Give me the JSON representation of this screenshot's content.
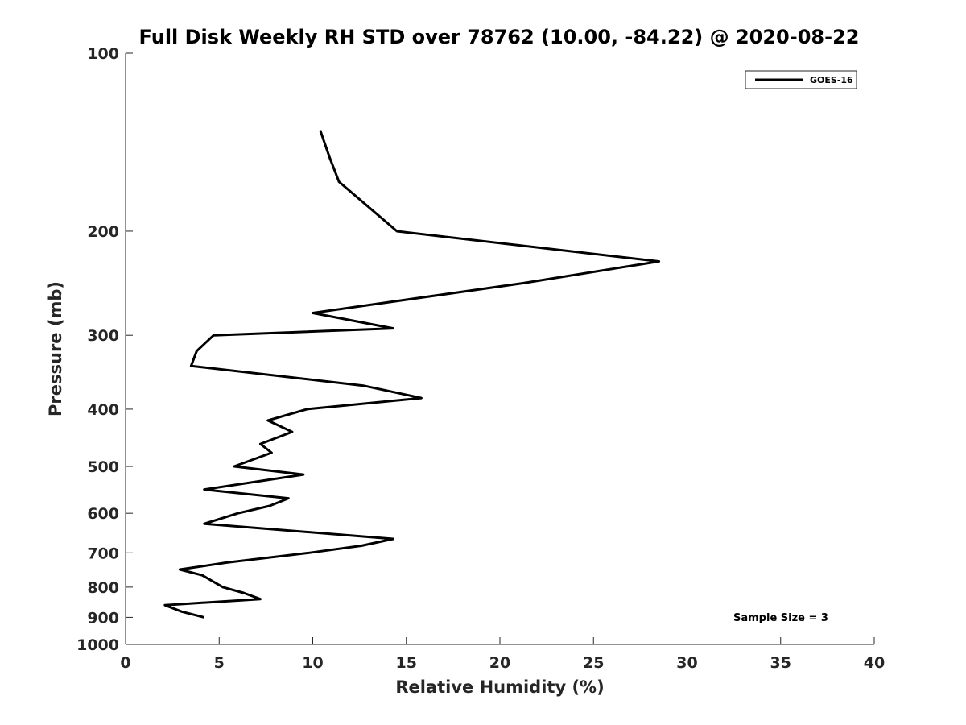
{
  "chart_data": {
    "type": "line",
    "title": "Full Disk Weekly RH STD over 78762 (10.00, -84.22) @ 2020-08-22",
    "xlabel": "Relative Humidity (%)",
    "ylabel": "Pressure (mb)",
    "xlim": [
      0,
      40
    ],
    "ylim": [
      100,
      1000
    ],
    "y_scale": "log",
    "y_reversed": true,
    "x_ticks": [
      "0",
      "5",
      "10",
      "15",
      "20",
      "25",
      "30",
      "35",
      "40"
    ],
    "y_ticks": [
      "100",
      "200",
      "300",
      "400",
      "500",
      "600",
      "700",
      "800",
      "900",
      "1000"
    ],
    "grid": false,
    "legend_position": "top-right",
    "annotation": "Sample Size = 3",
    "series": [
      {
        "name": "GOES-16",
        "color": "#000000",
        "points": [
          [
            10.4,
            135
          ],
          [
            10.9,
            150
          ],
          [
            11.4,
            165
          ],
          [
            14.5,
            200
          ],
          [
            28.5,
            225
          ],
          [
            21.2,
            245
          ],
          [
            10.0,
            275
          ],
          [
            14.3,
            292
          ],
          [
            4.7,
            300
          ],
          [
            3.8,
            319
          ],
          [
            3.5,
            338
          ],
          [
            12.7,
            365
          ],
          [
            15.8,
            383
          ],
          [
            9.7,
            400
          ],
          [
            7.6,
            418
          ],
          [
            8.9,
            437
          ],
          [
            7.2,
            458
          ],
          [
            7.8,
            474
          ],
          [
            5.8,
            500
          ],
          [
            9.5,
            516
          ],
          [
            4.2,
            547
          ],
          [
            8.7,
            566
          ],
          [
            7.7,
            583
          ],
          [
            6.0,
            600
          ],
          [
            4.2,
            625
          ],
          [
            14.3,
            663
          ],
          [
            12.6,
            681
          ],
          [
            9.8,
            700
          ],
          [
            5.4,
            727
          ],
          [
            2.9,
            747
          ],
          [
            4.1,
            764
          ],
          [
            4.8,
            787
          ],
          [
            5.2,
            800
          ],
          [
            6.3,
            818
          ],
          [
            7.2,
            838
          ],
          [
            2.1,
            858
          ],
          [
            3.0,
            880
          ],
          [
            4.2,
            900
          ]
        ]
      }
    ]
  }
}
